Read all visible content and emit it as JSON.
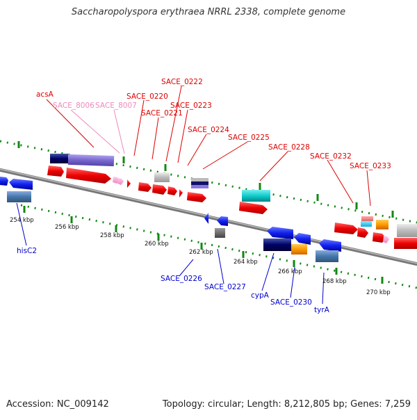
{
  "header": {
    "title": "Saccharopolyspora erythraea NRRL 2338, complete genome"
  },
  "footer": {
    "accession": "Accession: NC_009142",
    "summary": "Topology: circular; Length: 8,212,805 bp; Genes: 7,259"
  },
  "axis": {
    "ticks": [
      "254 kbp",
      "256 kbp",
      "258 kbp",
      "260 kbp",
      "262 kbp",
      "264 kbp",
      "266 kbp",
      "268 kbp",
      "270 kbp"
    ]
  },
  "labels": {
    "forward": [
      "acsA",
      "SACE_8006",
      "SACE_8007",
      "SACE_0220",
      "SACE_0221",
      "SACE_0222",
      "SACE_0223",
      "SACE_0224",
      "SACE_0225",
      "SACE_0228",
      "SACE_0232",
      "SACE_0233"
    ],
    "reverse": [
      "hisC2",
      "SACE_0226",
      "SACE_0227",
      "cypA",
      "SACE_0230",
      "tyrA"
    ]
  },
  "colors": {
    "label_forward": "#dd0000",
    "label_forward_light": "#ee88bb",
    "label_reverse": "#0000cc",
    "gene_forward": "#ee1111",
    "gene_reverse": "#1133ee"
  }
}
